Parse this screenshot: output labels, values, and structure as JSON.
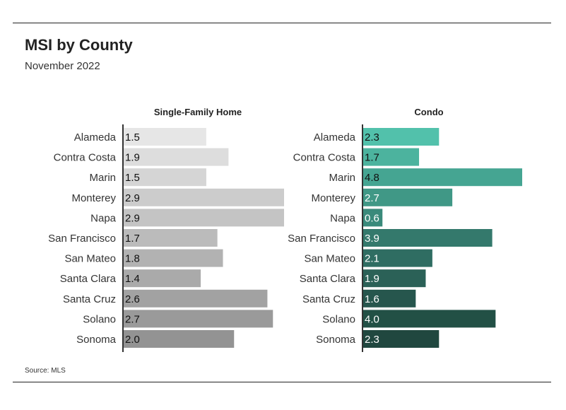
{
  "chart_data": [
    {
      "type": "bar",
      "orientation": "horizontal",
      "title": "Single-Family Home",
      "categories": [
        "Alameda",
        "Contra Costa",
        "Marin",
        "Monterey",
        "Napa",
        "San Francisco",
        "San Mateo",
        "Santa Clara",
        "Santa Cruz",
        "Solano",
        "Sonoma"
      ],
      "values": [
        1.5,
        1.9,
        1.5,
        2.9,
        2.9,
        1.7,
        1.8,
        1.4,
        2.6,
        2.7,
        2.0
      ],
      "colors": [
        "#e6e6e6",
        "#dddddd",
        "#d5d5d5",
        "#cccccc",
        "#c4c4c4",
        "#bbbbbb",
        "#b2b2b2",
        "#aaaaaa",
        "#a2a2a2",
        "#9a9a9a",
        "#939393"
      ],
      "xlim": [
        0,
        2.9
      ]
    },
    {
      "type": "bar",
      "orientation": "horizontal",
      "title": "Condo",
      "categories": [
        "Alameda",
        "Contra Costa",
        "Marin",
        "Monterey",
        "Napa",
        "San Francisco",
        "San Mateo",
        "Santa Clara",
        "Santa Cruz",
        "Solano",
        "Sonoma"
      ],
      "values": [
        2.3,
        1.7,
        4.8,
        2.7,
        0.6,
        3.9,
        2.1,
        1.9,
        1.6,
        4.0,
        2.3
      ],
      "colors": [
        "#52c1ab",
        "#4cb39e",
        "#45a592",
        "#409886",
        "#3a8a7b",
        "#34796c",
        "#2f6d62",
        "#2b6157",
        "#26564d",
        "#225045",
        "#20473f"
      ],
      "xlim": [
        0,
        4.8
      ]
    }
  ],
  "header": {
    "title": "MSI by County",
    "subtitle": "November 2022"
  },
  "footer": {
    "source": "Source:  MLS"
  }
}
